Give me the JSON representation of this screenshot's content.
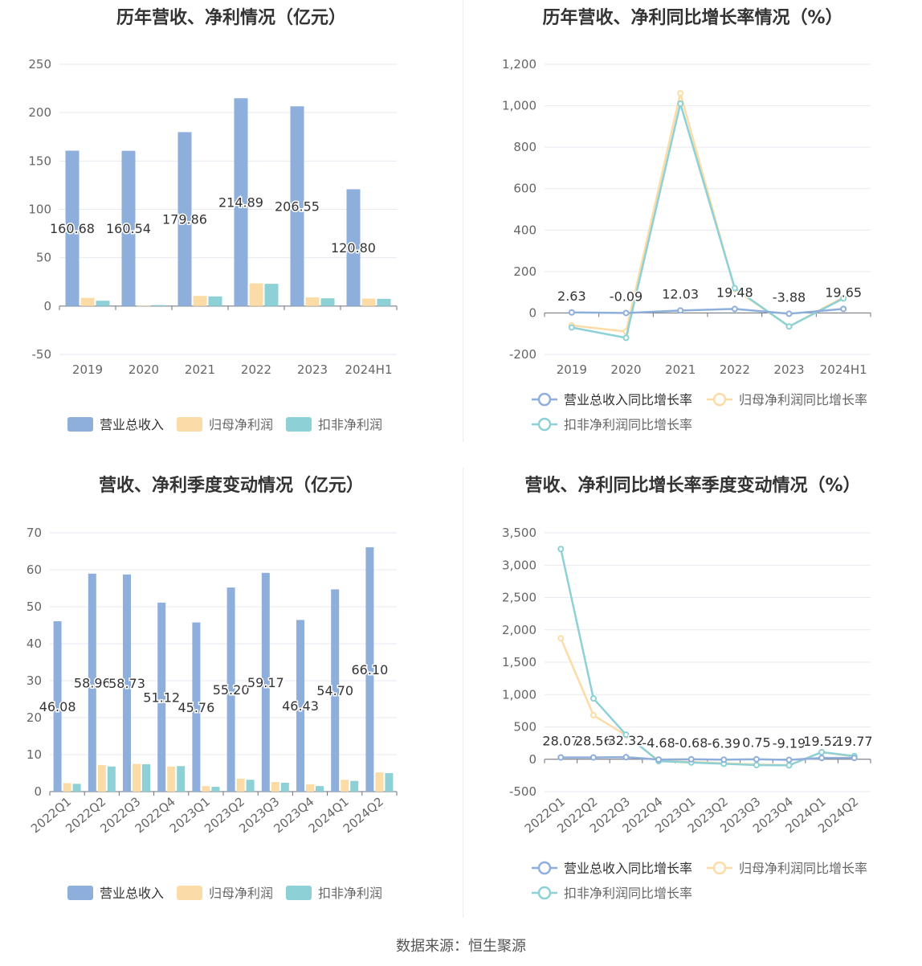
{
  "source_note": "数据来源：恒生聚源",
  "colors": {
    "rev": "#8eaedb",
    "np": "#fcdca6",
    "dnp": "#8dd1d6",
    "grid": "#e6e9f0",
    "axis": "#666666",
    "label": "#333333"
  },
  "chart_data": [
    {
      "type": "bar",
      "title": "历年营收、净利情况（亿元）",
      "categories": [
        "2019",
        "2020",
        "2021",
        "2022",
        "2023",
        "2024H1"
      ],
      "ylim": [
        -50,
        250
      ],
      "yticks": [
        -50,
        0,
        50,
        100,
        150,
        200,
        250
      ],
      "ytick_labels": [
        "-50",
        "0",
        "50",
        "100",
        "150",
        "200",
        "250"
      ],
      "series": [
        {
          "name": "营业总收入",
          "values": [
            160.68,
            160.54,
            179.86,
            214.89,
            206.55,
            120.8
          ],
          "labels": [
            "160.68",
            "160.54",
            "179.86",
            "214.89",
            "206.55",
            "120.80"
          ]
        },
        {
          "name": "归母净利润",
          "values": [
            8.5,
            0.2,
            10.5,
            23.5,
            9.0,
            7.8
          ]
        },
        {
          "name": "扣非净利润",
          "values": [
            5.5,
            1.0,
            10.0,
            23.0,
            8.0,
            7.5
          ]
        }
      ],
      "legend": "bottom"
    },
    {
      "type": "line",
      "title": "历年营收、净利同比增长率情况（%）",
      "categories": [
        "2019",
        "2020",
        "2021",
        "2022",
        "2023",
        "2024H1"
      ],
      "ylim": [
        -200,
        1200
      ],
      "yticks": [
        -200,
        0,
        200,
        400,
        600,
        800,
        1000,
        1200
      ],
      "ytick_labels": [
        "-200",
        "0",
        "200",
        "400",
        "600",
        "800",
        "1,000",
        "1,200"
      ],
      "series": [
        {
          "name": "营业总收入同比增长率",
          "values": [
            2.63,
            -0.09,
            12.03,
            19.48,
            -3.88,
            19.65
          ],
          "labels": [
            "2.63",
            "-0.09",
            "12.03",
            "19.48",
            "-3.88",
            "19.65"
          ]
        },
        {
          "name": "归母净利润同比增长率",
          "values": [
            -60,
            -90,
            1060,
            115,
            -65,
            75
          ]
        },
        {
          "name": "扣非净利润同比增长率",
          "values": [
            -70,
            -120,
            1010,
            120,
            -65,
            70
          ]
        }
      ],
      "legend": "bottom"
    },
    {
      "type": "bar",
      "title": "营收、净利季度变动情况（亿元）",
      "categories": [
        "2022Q1",
        "2022Q2",
        "2022Q3",
        "2022Q4",
        "2023Q1",
        "2023Q2",
        "2023Q3",
        "2023Q4",
        "2024Q1",
        "2024Q2"
      ],
      "ylim": [
        0,
        70
      ],
      "yticks": [
        0,
        10,
        20,
        30,
        40,
        50,
        60,
        70
      ],
      "ytick_labels": [
        "0",
        "10",
        "20",
        "30",
        "40",
        "50",
        "60",
        "70"
      ],
      "series": [
        {
          "name": "营业总收入",
          "values": [
            46.08,
            58.96,
            58.73,
            51.12,
            45.76,
            55.2,
            59.17,
            46.43,
            54.7,
            66.1
          ],
          "labels": [
            "46.08",
            "58.96",
            "58.73",
            "51.12",
            "45.76",
            "55.20",
            "59.17",
            "46.43",
            "54.70",
            "66.10"
          ]
        },
        {
          "name": "归母净利润",
          "values": [
            2.3,
            7.2,
            7.5,
            6.8,
            1.5,
            3.5,
            2.6,
            2.0,
            3.2,
            5.2
          ]
        },
        {
          "name": "扣非净利润",
          "values": [
            2.1,
            6.8,
            7.4,
            6.9,
            1.3,
            3.2,
            2.4,
            1.5,
            2.9,
            5.0
          ]
        }
      ],
      "legend": "bottom"
    },
    {
      "type": "line",
      "title": "营收、净利同比增长率季度变动情况（%）",
      "categories": [
        "2022Q1",
        "2022Q2",
        "2022Q3",
        "2022Q4",
        "2023Q1",
        "2023Q2",
        "2023Q3",
        "2023Q4",
        "2024Q1",
        "2024Q2"
      ],
      "ylim": [
        -500,
        3500
      ],
      "yticks": [
        -500,
        0,
        500,
        1000,
        1500,
        2000,
        2500,
        3000,
        3500
      ],
      "ytick_labels": [
        "-500",
        "0",
        "500",
        "1,000",
        "1,500",
        "2,000",
        "2,500",
        "3,000",
        "3,500"
      ],
      "series": [
        {
          "name": "营业总收入同比增长率",
          "values": [
            28.07,
            28.56,
            32.32,
            -4.68,
            -0.68,
            -6.39,
            0.75,
            -9.19,
            19.52,
            19.77
          ],
          "labels": [
            "28.07",
            "28.56",
            "32.32",
            "-4.68",
            "-0.68",
            "-6.39",
            "0.75",
            "-9.19",
            "19.52",
            "19.77"
          ]
        },
        {
          "name": "归母净利润同比增长率",
          "values": [
            1870,
            680,
            370,
            -20,
            -40,
            -60,
            -80,
            -90,
            110,
            40
          ]
        },
        {
          "name": "扣非净利润同比增长率",
          "values": [
            3250,
            940,
            380,
            -30,
            -50,
            -70,
            -90,
            -95,
            110,
            50
          ]
        }
      ],
      "legend": "bottom"
    }
  ]
}
